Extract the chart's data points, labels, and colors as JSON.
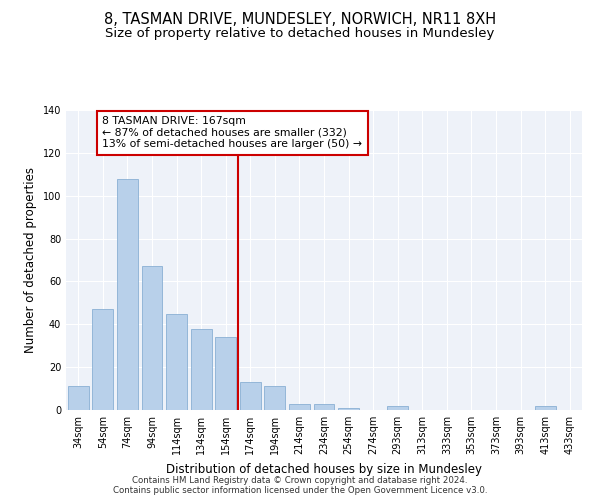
{
  "title1": "8, TASMAN DRIVE, MUNDESLEY, NORWICH, NR11 8XH",
  "title2": "Size of property relative to detached houses in Mundesley",
  "xlabel": "Distribution of detached houses by size in Mundesley",
  "ylabel": "Number of detached properties",
  "categories": [
    "34sqm",
    "54sqm",
    "74sqm",
    "94sqm",
    "114sqm",
    "134sqm",
    "154sqm",
    "174sqm",
    "194sqm",
    "214sqm",
    "234sqm",
    "254sqm",
    "274sqm",
    "293sqm",
    "313sqm",
    "333sqm",
    "353sqm",
    "373sqm",
    "393sqm",
    "413sqm",
    "433sqm"
  ],
  "values": [
    11,
    47,
    108,
    67,
    45,
    38,
    34,
    13,
    11,
    3,
    3,
    1,
    0,
    2,
    0,
    0,
    0,
    0,
    0,
    2,
    0
  ],
  "bar_color": "#b8d0ea",
  "bar_edgecolor": "#8ab0d4",
  "vline_color": "#cc0000",
  "vline_x_index": 7,
  "annotation_text": "8 TASMAN DRIVE: 167sqm\n← 87% of detached houses are smaller (332)\n13% of semi-detached houses are larger (50) →",
  "annotation_box_edgecolor": "#cc0000",
  "ylim": [
    0,
    140
  ],
  "yticks": [
    0,
    20,
    40,
    60,
    80,
    100,
    120,
    140
  ],
  "footer1": "Contains HM Land Registry data © Crown copyright and database right 2024.",
  "footer2": "Contains public sector information licensed under the Open Government Licence v3.0.",
  "bg_color": "#eef2f9",
  "title1_fontsize": 10.5,
  "title2_fontsize": 9.5,
  "tick_fontsize": 7,
  "ylabel_fontsize": 8.5,
  "xlabel_fontsize": 8.5,
  "footer_fontsize": 6.2,
  "annotation_fontsize": 7.8
}
